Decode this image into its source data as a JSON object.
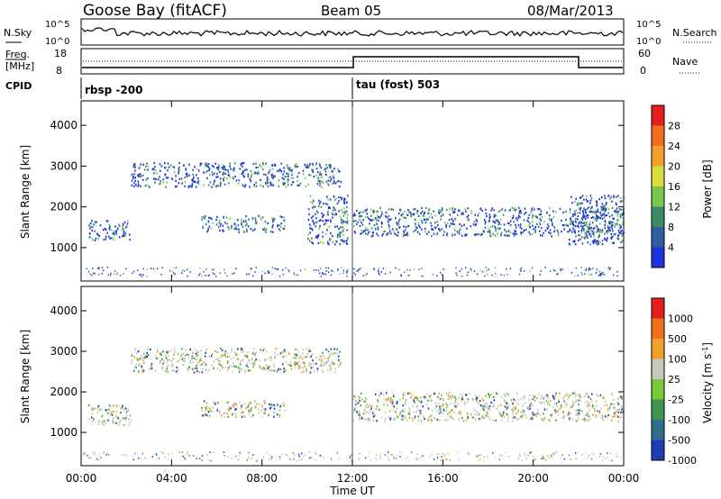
{
  "header": {
    "site": "Goose Bay (fitACF)",
    "beam": "Beam 05",
    "date": "08/Mar/2013"
  },
  "noise_panel": {
    "left_label": "N.Sky",
    "right_label": "N.Search",
    "left_ticks": [
      "10^5",
      "10^0"
    ],
    "right_ticks": [
      "10^5",
      "10^0"
    ]
  },
  "freq_panel": {
    "left_label_1": "Freq.",
    "left_label_2": "[MHz]",
    "right_label": "Nave",
    "left_ticks": [
      "18",
      "8"
    ],
    "right_ticks": [
      "60",
      "0"
    ]
  },
  "cpid": {
    "label": "CPID",
    "segments": [
      {
        "label": "rbsp -200",
        "start_hour": 0
      },
      {
        "label": "tau (fost) 503",
        "start_hour": 12
      }
    ]
  },
  "x_axis": {
    "label": "Time UT",
    "ticks": [
      "00:00",
      "04:00",
      "08:00",
      "12:00",
      "16:00",
      "20:00",
      "00:00"
    ]
  },
  "chart_data": [
    {
      "type": "heatmap",
      "title": "",
      "quantity": "Power",
      "xlabel": "Time UT",
      "ylabel": "Slant Range [km]",
      "xlim_hours": [
        0,
        24
      ],
      "ylim_km": [
        180,
        4600
      ],
      "y_ticks": [
        "1000",
        "2000",
        "3000",
        "4000"
      ],
      "colorbar_label": "Power [dB]",
      "colorbar_ticks": [
        "4",
        "8",
        "12",
        "16",
        "20",
        "24",
        "28"
      ],
      "colorbar_colors": [
        "#1e32dc",
        "#2e5fa0",
        "#3c8c64",
        "#78c850",
        "#dcdc3c",
        "#f0a028",
        "#f06e1e",
        "#e61e1e"
      ],
      "regions": [
        {
          "hours": [
            0.3,
            2.2
          ],
          "km": [
            1200,
            1700
          ],
          "level": "12-16"
        },
        {
          "hours": [
            2.2,
            11.5
          ],
          "km": [
            2500,
            3100
          ],
          "level": "4-8"
        },
        {
          "hours": [
            5.3,
            9.0
          ],
          "km": [
            1400,
            1800
          ],
          "level": "8-16"
        },
        {
          "hours": [
            10.0,
            11.8
          ],
          "km": [
            1100,
            2300
          ],
          "level": "12-20"
        },
        {
          "hours": [
            12.0,
            24.0
          ],
          "km": [
            1300,
            2000
          ],
          "level": "8-16"
        },
        {
          "hours": [
            21.5,
            24.0
          ],
          "km": [
            1100,
            2300
          ],
          "level": "12-20"
        }
      ]
    },
    {
      "type": "heatmap",
      "title": "",
      "quantity": "Velocity",
      "xlabel": "Time UT",
      "ylabel": "Slant Range [km]",
      "xlim_hours": [
        0,
        24
      ],
      "ylim_km": [
        180,
        4600
      ],
      "y_ticks": [
        "1000",
        "2000",
        "3000",
        "4000"
      ],
      "colorbar_label": "Velocity [m s^-1]",
      "colorbar_ticks": [
        "1000",
        "500",
        "100",
        "25",
        "-25",
        "-100",
        "-500",
        "-1000"
      ],
      "colorbar_colors": [
        "#1e3cb4",
        "#2e6e8c",
        "#3c9650",
        "#78c83c",
        "#c8c8be",
        "#f0a028",
        "#f06e1e",
        "#e61e1e"
      ],
      "regions": [
        {
          "hours": [
            0.3,
            2.2
          ],
          "km": [
            1200,
            1700
          ],
          "level": "-25..25"
        },
        {
          "hours": [
            2.2,
            11.5
          ],
          "km": [
            2500,
            3100
          ],
          "level": "-25..25"
        },
        {
          "hours": [
            5.3,
            9.0
          ],
          "km": [
            1400,
            1800
          ],
          "level": "mixed"
        },
        {
          "hours": [
            12.0,
            24.0
          ],
          "km": [
            1300,
            2000
          ],
          "level": "-25..25"
        }
      ]
    }
  ]
}
